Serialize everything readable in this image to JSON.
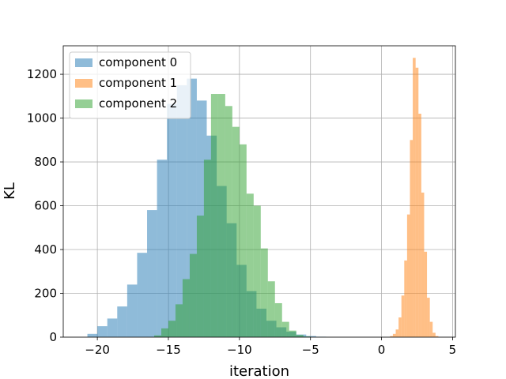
{
  "chart_data": {
    "type": "histogram",
    "xlabel": "iteration",
    "ylabel": "KL",
    "xlim": [
      -22.4,
      5.2
    ],
    "ylim": [
      0,
      1330
    ],
    "xticks": [
      -20,
      -15,
      -10,
      -5,
      0,
      5
    ],
    "yticks": [
      0,
      200,
      400,
      600,
      800,
      1000,
      1200
    ],
    "grid": true,
    "legend_position": "upper-left",
    "series": [
      {
        "name": "component 0",
        "color": "#1f77b4",
        "opacity": 0.5,
        "bins": [
          [
            -20.7,
            -20.0,
            15
          ],
          [
            -20.0,
            -19.3,
            50
          ],
          [
            -19.3,
            -18.6,
            85
          ],
          [
            -18.6,
            -17.9,
            140
          ],
          [
            -17.9,
            -17.2,
            240
          ],
          [
            -17.2,
            -16.5,
            385
          ],
          [
            -16.5,
            -15.8,
            580
          ],
          [
            -15.8,
            -15.1,
            810
          ],
          [
            -15.1,
            -14.4,
            1065
          ],
          [
            -14.4,
            -13.7,
            1150
          ],
          [
            -13.7,
            -13.0,
            1180
          ],
          [
            -13.0,
            -12.3,
            1080
          ],
          [
            -12.3,
            -11.6,
            920
          ],
          [
            -11.6,
            -10.9,
            690
          ],
          [
            -10.9,
            -10.2,
            520
          ],
          [
            -10.2,
            -9.5,
            330
          ],
          [
            -9.5,
            -8.8,
            210
          ],
          [
            -8.8,
            -8.1,
            130
          ],
          [
            -8.1,
            -7.4,
            75
          ],
          [
            -7.4,
            -6.7,
            45
          ],
          [
            -6.7,
            -6.0,
            25
          ],
          [
            -6.0,
            -5.3,
            12
          ],
          [
            -5.3,
            -4.6,
            5
          ],
          [
            -4.6,
            -3.9,
            2
          ]
        ]
      },
      {
        "name": "component 1",
        "color": "#ff7f0e",
        "opacity": 0.5,
        "bins": [
          [
            0.6,
            0.8,
            5
          ],
          [
            0.8,
            1.0,
            15
          ],
          [
            1.0,
            1.2,
            35
          ],
          [
            1.2,
            1.4,
            90
          ],
          [
            1.4,
            1.6,
            190
          ],
          [
            1.6,
            1.8,
            350
          ],
          [
            1.8,
            2.0,
            560
          ],
          [
            2.0,
            2.2,
            900
          ],
          [
            2.2,
            2.4,
            1275
          ],
          [
            2.4,
            2.6,
            1230
          ],
          [
            2.6,
            2.8,
            1020
          ],
          [
            2.8,
            3.0,
            660
          ],
          [
            3.0,
            3.2,
            390
          ],
          [
            3.2,
            3.4,
            180
          ],
          [
            3.4,
            3.6,
            70
          ],
          [
            3.6,
            3.8,
            20
          ],
          [
            3.8,
            4.0,
            5
          ]
        ]
      },
      {
        "name": "component 2",
        "color": "#2ca02c",
        "opacity": 0.5,
        "bins": [
          [
            -16.0,
            -15.5,
            8
          ],
          [
            -15.5,
            -15.0,
            40
          ],
          [
            -15.0,
            -14.5,
            75
          ],
          [
            -14.5,
            -14.0,
            150
          ],
          [
            -14.0,
            -13.5,
            265
          ],
          [
            -13.5,
            -13.0,
            380
          ],
          [
            -13.0,
            -12.5,
            555
          ],
          [
            -12.5,
            -12.0,
            810
          ],
          [
            -12.0,
            -11.5,
            1110
          ],
          [
            -11.5,
            -11.0,
            1110
          ],
          [
            -11.0,
            -10.5,
            1055
          ],
          [
            -10.5,
            -10.0,
            960
          ],
          [
            -10.0,
            -9.5,
            880
          ],
          [
            -9.5,
            -9.0,
            655
          ],
          [
            -9.0,
            -8.5,
            600
          ],
          [
            -8.5,
            -8.0,
            405
          ],
          [
            -8.0,
            -7.5,
            255
          ],
          [
            -7.5,
            -7.0,
            155
          ],
          [
            -7.0,
            -6.5,
            70
          ],
          [
            -6.5,
            -6.0,
            30
          ],
          [
            -6.0,
            -5.5,
            10
          ],
          [
            -5.5,
            -5.0,
            3
          ]
        ]
      }
    ]
  }
}
